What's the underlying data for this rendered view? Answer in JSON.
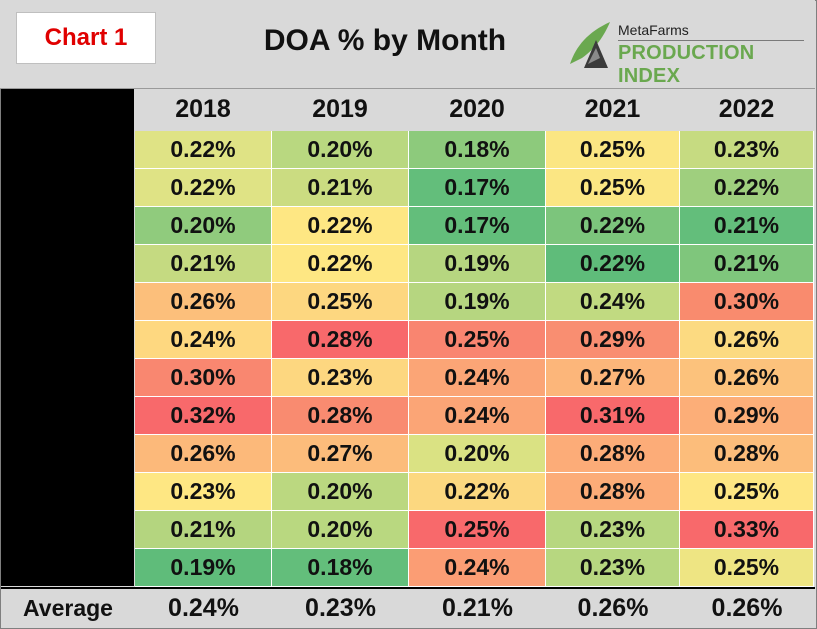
{
  "header": {
    "badge": "Chart 1",
    "title": "DOA % by Month",
    "logo_small": "MetaFarms",
    "logo_big": "PRODUCTION INDEX"
  },
  "chart_data": {
    "type": "table",
    "title": "DOA % by Month",
    "columns": [
      "2018",
      "2019",
      "2020",
      "2021",
      "2022"
    ],
    "rows": [
      [
        "0.22%",
        "0.20%",
        "0.18%",
        "0.25%",
        "0.23%"
      ],
      [
        "0.22%",
        "0.21%",
        "0.17%",
        "0.25%",
        "0.22%"
      ],
      [
        "0.20%",
        "0.22%",
        "0.17%",
        "0.22%",
        "0.21%"
      ],
      [
        "0.21%",
        "0.22%",
        "0.19%",
        "0.22%",
        "0.21%"
      ],
      [
        "0.26%",
        "0.25%",
        "0.19%",
        "0.24%",
        "0.30%"
      ],
      [
        "0.24%",
        "0.28%",
        "0.25%",
        "0.29%",
        "0.26%"
      ],
      [
        "0.30%",
        "0.23%",
        "0.24%",
        "0.27%",
        "0.26%"
      ],
      [
        "0.32%",
        "0.28%",
        "0.24%",
        "0.31%",
        "0.29%"
      ],
      [
        "0.26%",
        "0.27%",
        "0.20%",
        "0.28%",
        "0.28%"
      ],
      [
        "0.23%",
        "0.20%",
        "0.22%",
        "0.28%",
        "0.25%"
      ],
      [
        "0.21%",
        "0.20%",
        "0.25%",
        "0.23%",
        "0.33%"
      ],
      [
        "0.19%",
        "0.18%",
        "0.24%",
        "0.23%",
        "0.25%"
      ]
    ],
    "colors": [
      [
        "#dfe385",
        "#b9d880",
        "#8dca7c",
        "#fbe683",
        "#c6db81"
      ],
      [
        "#dfe385",
        "#cbdc81",
        "#63be7b",
        "#fbe683",
        "#9fcf7e"
      ],
      [
        "#90cb7d",
        "#fee783",
        "#63be7b",
        "#7cc57c",
        "#63be7b"
      ],
      [
        "#c5da81",
        "#fee783",
        "#b6d680",
        "#5fbc7a",
        "#7fc67c"
      ],
      [
        "#fcbf7b",
        "#fdd780",
        "#b6d680",
        "#c1da81",
        "#f98b6e"
      ],
      [
        "#fed880",
        "#f8696b",
        "#f98570",
        "#f98e71",
        "#fcda81"
      ],
      [
        "#f98770",
        "#fdd780",
        "#fba576",
        "#fcb67a",
        "#fcc27c"
      ],
      [
        "#f8696b",
        "#f98b70",
        "#fba576",
        "#f8696b",
        "#fcae78"
      ],
      [
        "#fcb97a",
        "#fcbc7b",
        "#dae283",
        "#fcac78",
        "#fcbd7b"
      ],
      [
        "#fee783",
        "#bbd880",
        "#fcd880",
        "#fcac78",
        "#fee683"
      ],
      [
        "#b4d57f",
        "#b9d880",
        "#f8696b",
        "#b7d780",
        "#f8696b"
      ],
      [
        "#5fbc7a",
        "#63be7b",
        "#fb9d74",
        "#b7d780",
        "#eee583"
      ]
    ],
    "average_label": "Average",
    "averages": [
      "0.24%",
      "0.23%",
      "0.21%",
      "0.26%",
      "0.26%"
    ]
  }
}
